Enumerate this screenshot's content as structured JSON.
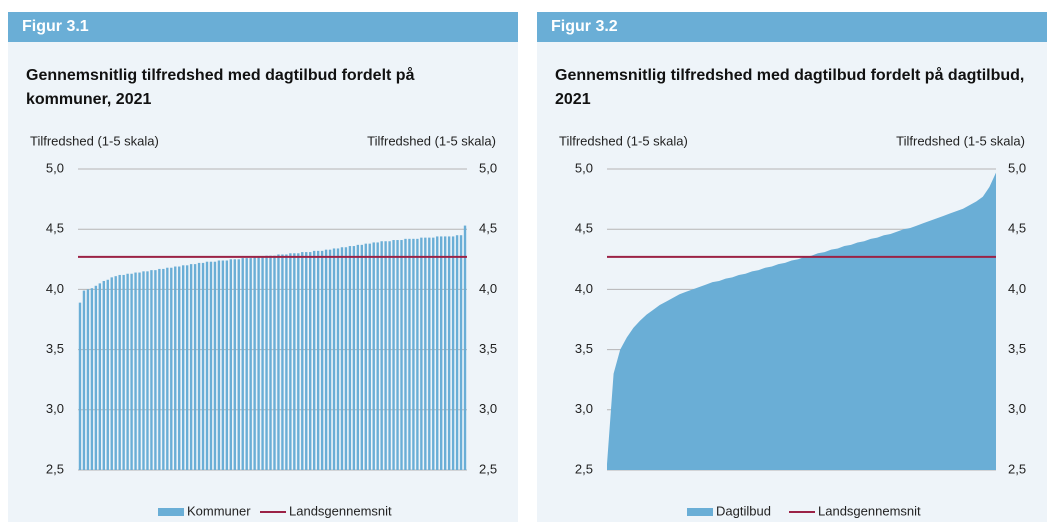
{
  "chart_data": [
    {
      "figure_label": "Figur 3.1",
      "type": "bar",
      "title": "Gennemsnitlig tilfredshed med dagtilbud fordelt på kommuner, 2021",
      "ylabel": "Tilfredshed (1-5 skala)",
      "y2label": "Tilfredshed (1-5 skala)",
      "ylim": [
        2.5,
        5
      ],
      "yticks": [
        {
          "value": 2.5,
          "label": "2,5"
        },
        {
          "value": 3,
          "label": "3,0"
        },
        {
          "value": 3.5,
          "label": "3,5"
        },
        {
          "value": 4,
          "label": "4,0"
        },
        {
          "value": 4.5,
          "label": "4,5"
        },
        {
          "value": 5,
          "label": "5,0"
        }
      ],
      "y2lim": [
        2.5,
        5
      ],
      "y2ticks": [
        {
          "value": 2.5,
          "label": "2,5"
        },
        {
          "value": 3,
          "label": "3,0"
        },
        {
          "value": 3.5,
          "label": "3,5"
        },
        {
          "value": 4,
          "label": "4,0"
        },
        {
          "value": 4.5,
          "label": "4,5"
        },
        {
          "value": 5,
          "label": "5,0"
        }
      ],
      "grid": true,
      "legend": "bottom",
      "series": [
        {
          "name": "Kommuner",
          "color": "#6aaed6",
          "values": [
            3.89,
            3.99,
            4.0,
            4.01,
            4.03,
            4.05,
            4.07,
            4.08,
            4.1,
            4.11,
            4.12,
            4.12,
            4.13,
            4.13,
            4.14,
            4.14,
            4.15,
            4.15,
            4.16,
            4.16,
            4.17,
            4.17,
            4.18,
            4.18,
            4.19,
            4.19,
            4.2,
            4.2,
            4.21,
            4.21,
            4.22,
            4.22,
            4.23,
            4.23,
            4.23,
            4.24,
            4.24,
            4.24,
            4.25,
            4.25,
            4.25,
            4.26,
            4.26,
            4.26,
            4.27,
            4.27,
            4.27,
            4.28,
            4.28,
            4.28,
            4.29,
            4.29,
            4.29,
            4.3,
            4.3,
            4.3,
            4.31,
            4.31,
            4.31,
            4.32,
            4.32,
            4.32,
            4.33,
            4.33,
            4.34,
            4.34,
            4.35,
            4.35,
            4.36,
            4.36,
            4.37,
            4.37,
            4.38,
            4.38,
            4.39,
            4.39,
            4.4,
            4.4,
            4.4,
            4.41,
            4.41,
            4.41,
            4.42,
            4.42,
            4.42,
            4.42,
            4.43,
            4.43,
            4.43,
            4.43,
            4.44,
            4.44,
            4.44,
            4.44,
            4.44,
            4.45,
            4.45,
            4.53
          ]
        }
      ],
      "reference_line": {
        "name": "Landsgennemsnit",
        "color": "#9b2246",
        "value": 4.27
      }
    },
    {
      "figure_label": "Figur 3.2",
      "type": "area",
      "title": "Gennemsnitlig tilfredshed med dagtilbud fordelt på dagtilbud, 2021",
      "ylabel": "Tilfredshed (1-5 skala)",
      "y2label": "Tilfredshed (1-5 skala)",
      "ylim": [
        2.5,
        5
      ],
      "yticks": [
        {
          "value": 2.5,
          "label": "2,5"
        },
        {
          "value": 3,
          "label": "3,0"
        },
        {
          "value": 3.5,
          "label": "3,5"
        },
        {
          "value": 4,
          "label": "4,0"
        },
        {
          "value": 4.5,
          "label": "4,5"
        },
        {
          "value": 5,
          "label": "5,0"
        }
      ],
      "y2lim": [
        2.5,
        5
      ],
      "y2ticks": [
        {
          "value": 2.5,
          "label": "2,5"
        },
        {
          "value": 3,
          "label": "3,0"
        },
        {
          "value": 3.5,
          "label": "3,5"
        },
        {
          "value": 4,
          "label": "4,0"
        },
        {
          "value": 4.5,
          "label": "4,5"
        },
        {
          "value": 5,
          "label": "5,0"
        }
      ],
      "grid": true,
      "legend": "bottom",
      "series": [
        {
          "name": "Dagtilbud",
          "color": "#6aaed6",
          "values": [
            2.55,
            3.3,
            3.5,
            3.6,
            3.68,
            3.74,
            3.79,
            3.83,
            3.87,
            3.9,
            3.93,
            3.96,
            3.98,
            4.0,
            4.02,
            4.04,
            4.06,
            4.07,
            4.09,
            4.1,
            4.12,
            4.13,
            4.15,
            4.16,
            4.18,
            4.19,
            4.21,
            4.22,
            4.24,
            4.25,
            4.27,
            4.28,
            4.3,
            4.31,
            4.33,
            4.34,
            4.36,
            4.37,
            4.39,
            4.4,
            4.42,
            4.43,
            4.45,
            4.46,
            4.48,
            4.5,
            4.51,
            4.53,
            4.55,
            4.57,
            4.59,
            4.61,
            4.63,
            4.65,
            4.67,
            4.7,
            4.73,
            4.77,
            4.85,
            4.97
          ]
        }
      ],
      "reference_line": {
        "name": "Landsgennemsnit",
        "color": "#9b2246",
        "value": 4.27
      }
    }
  ]
}
